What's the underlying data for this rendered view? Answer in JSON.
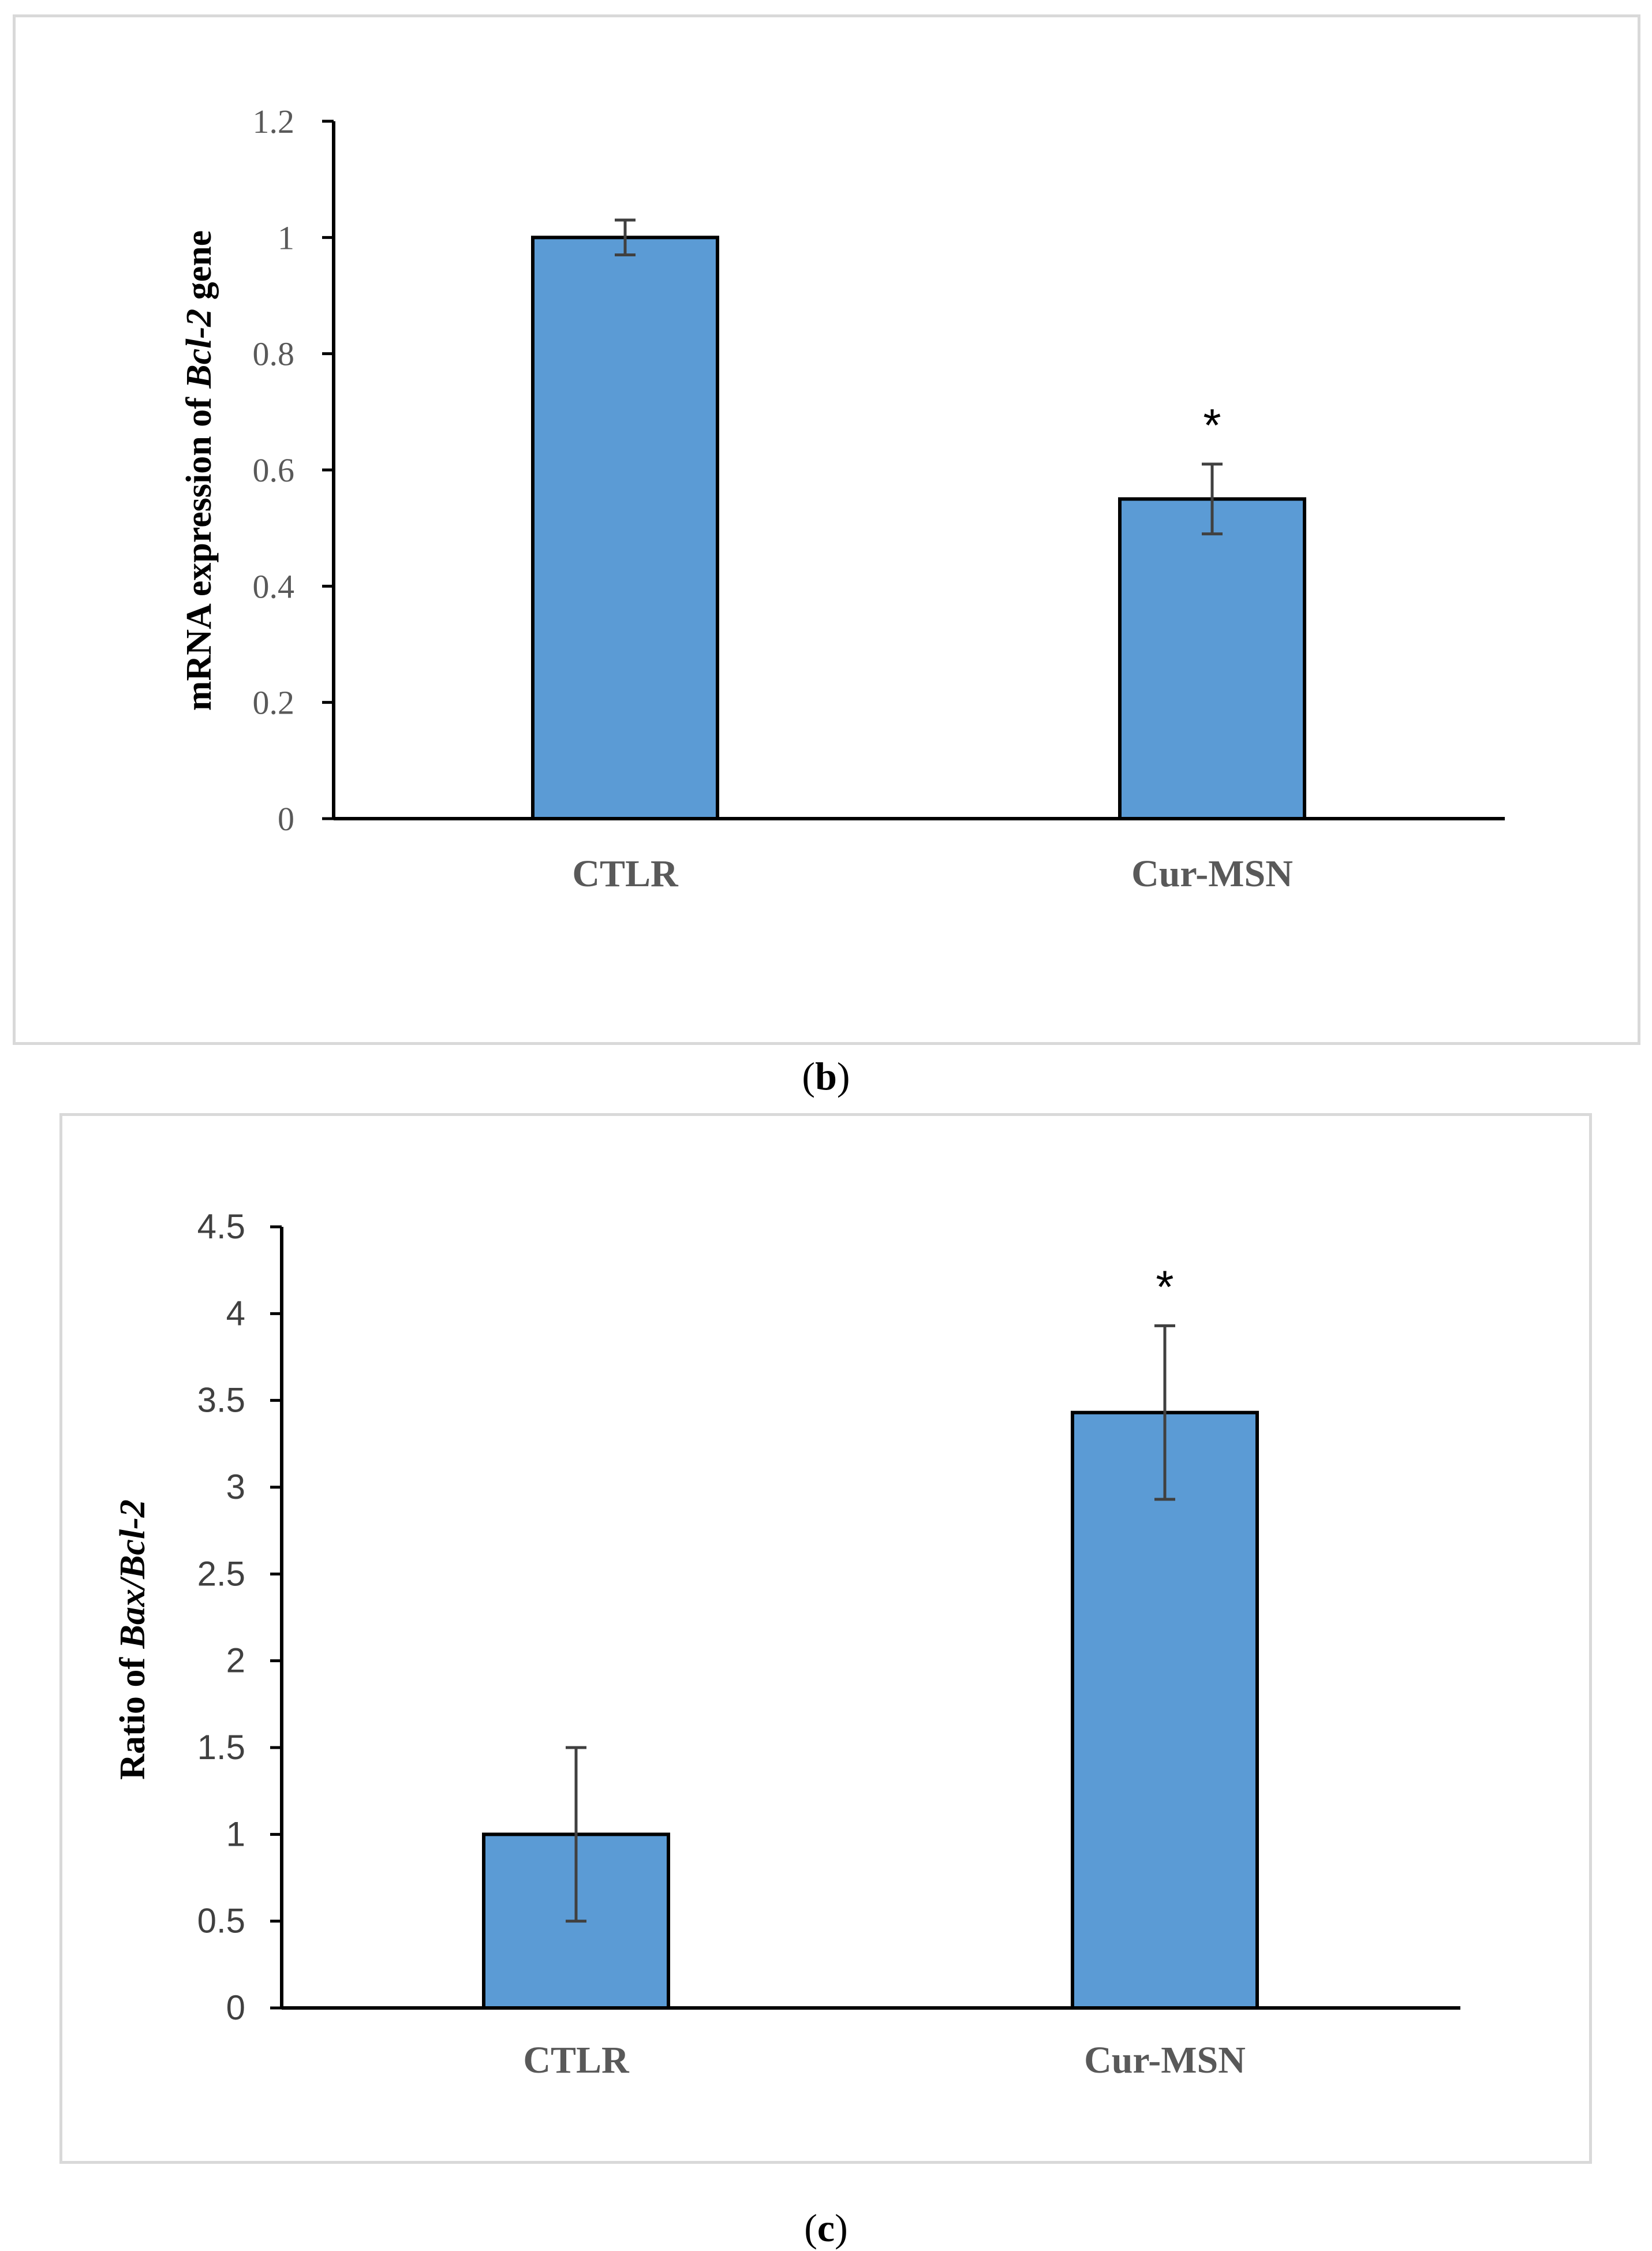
{
  "captions": {
    "b": {
      "open": "(",
      "letter": "b",
      "close": ")"
    },
    "c": {
      "open": "(",
      "letter": "c",
      "close": ")"
    }
  },
  "colors": {
    "bar": "#5b9bd5",
    "bar_edge": "#000000",
    "error": "#404040",
    "axis": "#000000"
  },
  "chart_data": [
    {
      "type": "bar",
      "panel": "b",
      "title": "",
      "categories": [
        "CTLR",
        "Cur-MSN"
      ],
      "values": [
        1.0,
        0.55
      ],
      "errors": [
        0.03,
        0.06
      ],
      "significance": [
        "",
        "*"
      ],
      "ylabel_parts": [
        "mRNA expression of ",
        "Bcl-2",
        " gene"
      ],
      "xlabel": "",
      "ylim": [
        0,
        1.2
      ],
      "yticks": [
        0,
        0.2,
        0.4,
        0.6,
        0.8,
        1,
        1.2
      ],
      "ytick_labels": [
        "0",
        "0.2",
        "0.4",
        "0.6",
        "0.8",
        "1",
        "1.2"
      ],
      "grid": false
    },
    {
      "type": "bar",
      "panel": "c",
      "title": "",
      "categories": [
        "CTLR",
        "Cur-MSN"
      ],
      "values": [
        1.0,
        3.43
      ],
      "errors": [
        0.5,
        0.5
      ],
      "significance": [
        "",
        "*"
      ],
      "ylabel_parts": [
        "Ratio of ",
        "Bax/Bcl-2",
        ""
      ],
      "xlabel": "",
      "ylim": [
        0,
        4.5
      ],
      "yticks": [
        0,
        0.5,
        1,
        1.5,
        2,
        2.5,
        3,
        3.5,
        4,
        4.5
      ],
      "ytick_labels": [
        "0",
        "0.5",
        "1",
        "1.5",
        "2",
        "2.5",
        "3",
        "3.5",
        "4",
        "4.5"
      ],
      "grid": false
    }
  ]
}
